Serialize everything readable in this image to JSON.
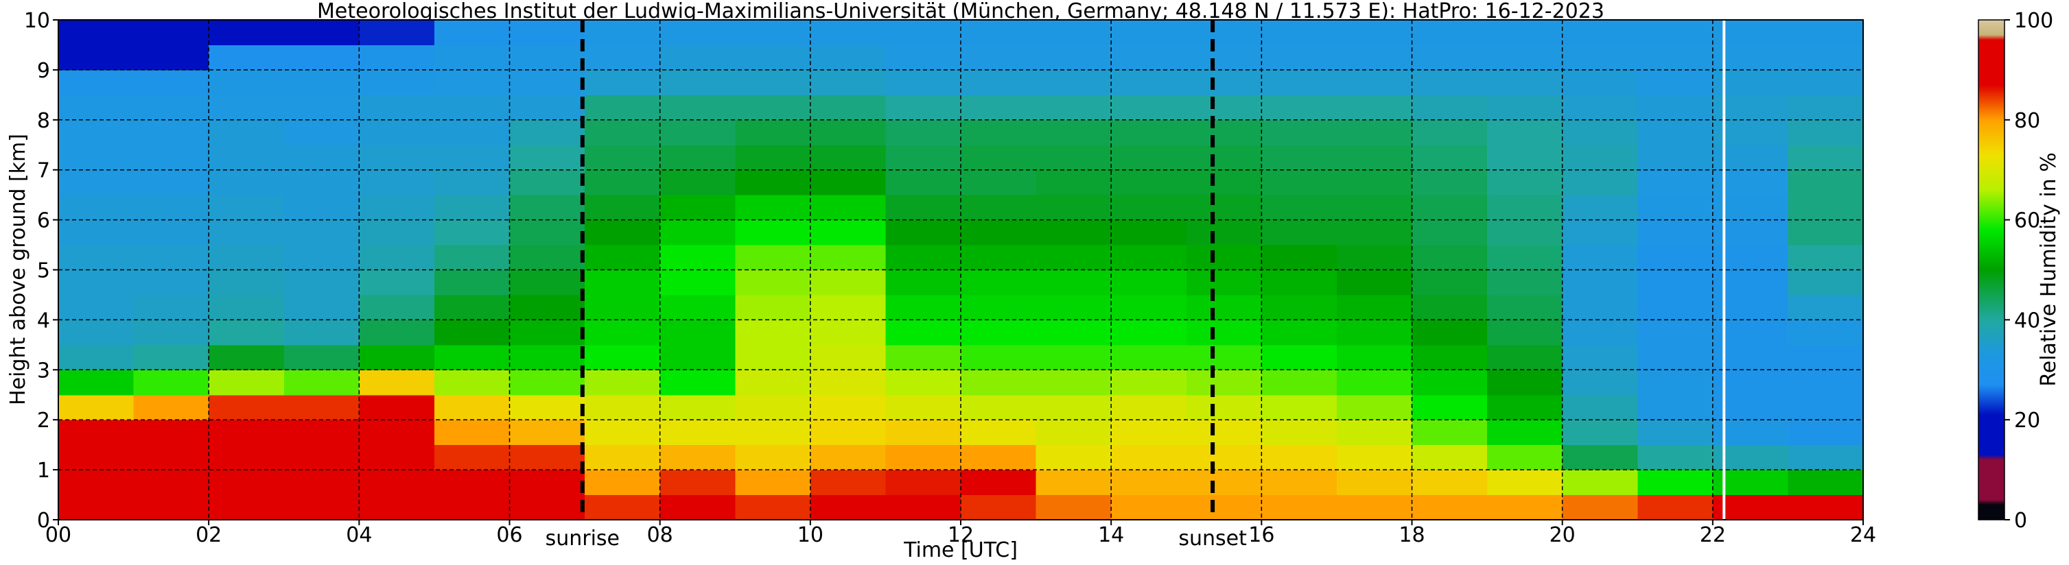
{
  "chart_data": {
    "type": "heatmap",
    "title": "Meteorologisches Institut der Ludwig-Maximilians-Universität (München, Germany; 48.148 N / 11.573 E):    HatPro: 16-12-2023",
    "xlabel": "Time [UTC]",
    "ylabel": "Height above ground [km]",
    "colorbar_label": "Relative Humidity in %",
    "xlim": [
      0,
      24
    ],
    "ylim": [
      0,
      10
    ],
    "clim": [
      0,
      100
    ],
    "xticks": [
      {
        "value": 0,
        "label": "00"
      },
      {
        "value": 2,
        "label": "02"
      },
      {
        "value": 4,
        "label": "04"
      },
      {
        "value": 6,
        "label": "06"
      },
      {
        "value": 8,
        "label": "08"
      },
      10,
      12,
      14,
      16,
      18,
      20,
      22,
      24
    ],
    "yticks": [
      0,
      1,
      2,
      3,
      4,
      5,
      6,
      7,
      8,
      9,
      10
    ],
    "cticks": [
      0,
      20,
      40,
      60,
      80,
      100
    ],
    "grid": true,
    "x_edges": [
      0,
      1,
      2,
      3,
      4,
      5,
      6,
      7,
      8,
      9,
      10,
      11,
      12,
      13,
      14,
      15,
      16,
      17,
      18,
      19,
      20,
      21,
      22,
      23,
      24
    ],
    "y_edges": [
      0,
      0.5,
      1,
      1.5,
      2,
      2.5,
      3,
      3.5,
      4,
      4.5,
      5,
      5.5,
      6,
      6.5,
      7,
      7.5,
      8,
      8.5,
      9,
      9.5,
      10
    ],
    "z": [
      [
        92,
        92,
        92,
        92,
        75,
        55,
        38,
        36,
        35,
        35,
        35,
        34,
        34,
        33,
        33,
        33,
        32,
        30,
        18,
        15
      ],
      [
        92,
        92,
        92,
        92,
        80,
        60,
        40,
        37,
        36,
        35,
        35,
        34,
        34,
        33,
        33,
        33,
        32,
        30,
        20,
        15
      ],
      [
        92,
        92,
        92,
        92,
        85,
        65,
        48,
        40,
        38,
        37,
        36,
        35,
        35,
        34,
        34,
        34,
        33,
        32,
        28,
        18
      ],
      [
        92,
        92,
        92,
        92,
        85,
        62,
        45,
        38,
        36,
        36,
        35,
        35,
        34,
        34,
        34,
        33,
        33,
        32,
        28,
        18
      ],
      [
        92,
        92,
        92,
        92,
        90,
        75,
        52,
        45,
        42,
        40,
        38,
        37,
        36,
        35,
        35,
        34,
        34,
        32,
        30,
        22
      ],
      [
        90,
        88,
        85,
        80,
        75,
        65,
        55,
        50,
        48,
        45,
        42,
        40,
        38,
        36,
        35,
        34,
        34,
        33,
        32,
        30
      ],
      [
        90,
        88,
        85,
        78,
        72,
        62,
        55,
        52,
        50,
        48,
        46,
        45,
        44,
        42,
        40,
        38,
        34,
        33,
        32,
        30
      ],
      [
        85,
        80,
        75,
        72,
        70,
        65,
        58,
        56,
        55,
        55,
        52,
        50,
        48,
        46,
        45,
        44,
        42,
        35,
        33,
        32
      ],
      [
        88,
        85,
        78,
        72,
        68,
        58,
        55,
        55,
        56,
        58,
        58,
        55,
        52,
        48,
        46,
        44,
        42,
        36,
        34,
        32
      ],
      [
        85,
        80,
        75,
        72,
        70,
        68,
        66,
        66,
        65,
        64,
        62,
        58,
        55,
        50,
        48,
        46,
        42,
        36,
        34,
        32
      ],
      [
        88,
        85,
        78,
        74,
        72,
        70,
        68,
        67,
        66,
        65,
        62,
        58,
        55,
        50,
        48,
        46,
        42,
        36,
        34,
        32
      ],
      [
        88,
        86,
        80,
        75,
        70,
        66,
        62,
        58,
        56,
        54,
        52,
        50,
        48,
        46,
        45,
        44,
        40,
        35,
        33,
        32
      ],
      [
        85,
        88,
        80,
        72,
        68,
        64,
        60,
        58,
        56,
        55,
        52,
        50,
        48,
        46,
        46,
        45,
        40,
        35,
        33,
        32
      ],
      [
        82,
        78,
        72,
        70,
        68,
        64,
        60,
        58,
        56,
        55,
        52,
        50,
        48,
        47,
        46,
        45,
        40,
        35,
        33,
        32
      ],
      [
        80,
        78,
        74,
        72,
        70,
        65,
        60,
        58,
        56,
        55,
        52,
        50,
        48,
        47,
        46,
        45,
        40,
        35,
        33,
        32
      ],
      [
        80,
        78,
        74,
        72,
        68,
        64,
        60,
        57,
        55,
        53,
        51,
        49,
        48,
        47,
        46,
        45,
        40,
        35,
        33,
        32
      ],
      [
        80,
        78,
        74,
        70,
        66,
        62,
        58,
        55,
        53,
        52,
        50,
        48,
        47,
        46,
        45,
        44,
        40,
        35,
        33,
        32
      ],
      [
        80,
        76,
        72,
        68,
        64,
        60,
        56,
        54,
        52,
        50,
        49,
        48,
        47,
        46,
        45,
        44,
        40,
        35,
        33,
        32
      ],
      [
        80,
        75,
        68,
        62,
        58,
        55,
        52,
        50,
        48,
        47,
        46,
        45,
        45,
        44,
        43,
        42,
        38,
        35,
        33,
        32
      ],
      [
        80,
        72,
        62,
        56,
        52,
        50,
        48,
        46,
        45,
        44,
        43,
        42,
        42,
        41,
        40,
        40,
        37,
        35,
        33,
        32
      ],
      [
        82,
        65,
        45,
        40,
        38,
        36,
        35,
        34,
        34,
        34,
        34,
        35,
        36,
        38,
        38,
        37,
        35,
        34,
        33,
        32
      ],
      [
        85,
        58,
        40,
        35,
        32,
        32,
        31,
        31,
        30,
        30,
        30,
        31,
        32,
        33,
        34,
        34,
        34,
        33,
        33,
        32
      ],
      [
        88,
        55,
        38,
        32,
        30,
        30,
        30,
        30,
        30,
        30,
        30,
        31,
        32,
        33,
        34,
        35,
        35,
        34,
        33,
        32
      ],
      [
        88,
        52,
        36,
        30,
        30,
        30,
        30,
        32,
        35,
        38,
        40,
        42,
        42,
        42,
        40,
        38,
        36,
        34,
        33,
        32
      ]
    ],
    "colormap": [
      {
        "value": 0,
        "color": "#05050f"
      },
      {
        "value": 3,
        "color": "#05050f"
      },
      {
        "value": 4,
        "color": "#8b0a3a"
      },
      {
        "value": 12,
        "color": "#8b0a3a"
      },
      {
        "value": 13,
        "color": "#0010c0"
      },
      {
        "value": 21,
        "color": "#0010c0"
      },
      {
        "value": 27,
        "color": "#1e90f0"
      },
      {
        "value": 33,
        "color": "#1e98e0"
      },
      {
        "value": 40,
        "color": "#20a8a0"
      },
      {
        "value": 50,
        "color": "#00a000"
      },
      {
        "value": 58,
        "color": "#00e800"
      },
      {
        "value": 66,
        "color": "#b8f000"
      },
      {
        "value": 73,
        "color": "#f0e000"
      },
      {
        "value": 80,
        "color": "#ffa000"
      },
      {
        "value": 87,
        "color": "#e00000"
      },
      {
        "value": 96,
        "color": "#e00000"
      },
      {
        "value": 97,
        "color": "#c8b478"
      },
      {
        "value": 100,
        "color": "#d8c8a0"
      }
    ],
    "vlines": [
      {
        "x": 6.97,
        "label": "sunrise",
        "color": "#000000",
        "style": "dashed"
      },
      {
        "x": 15.35,
        "label": "sunset",
        "color": "#000000",
        "style": "dashed"
      },
      {
        "x": 22.15,
        "color": "#ffffff",
        "style": "solid"
      }
    ]
  }
}
